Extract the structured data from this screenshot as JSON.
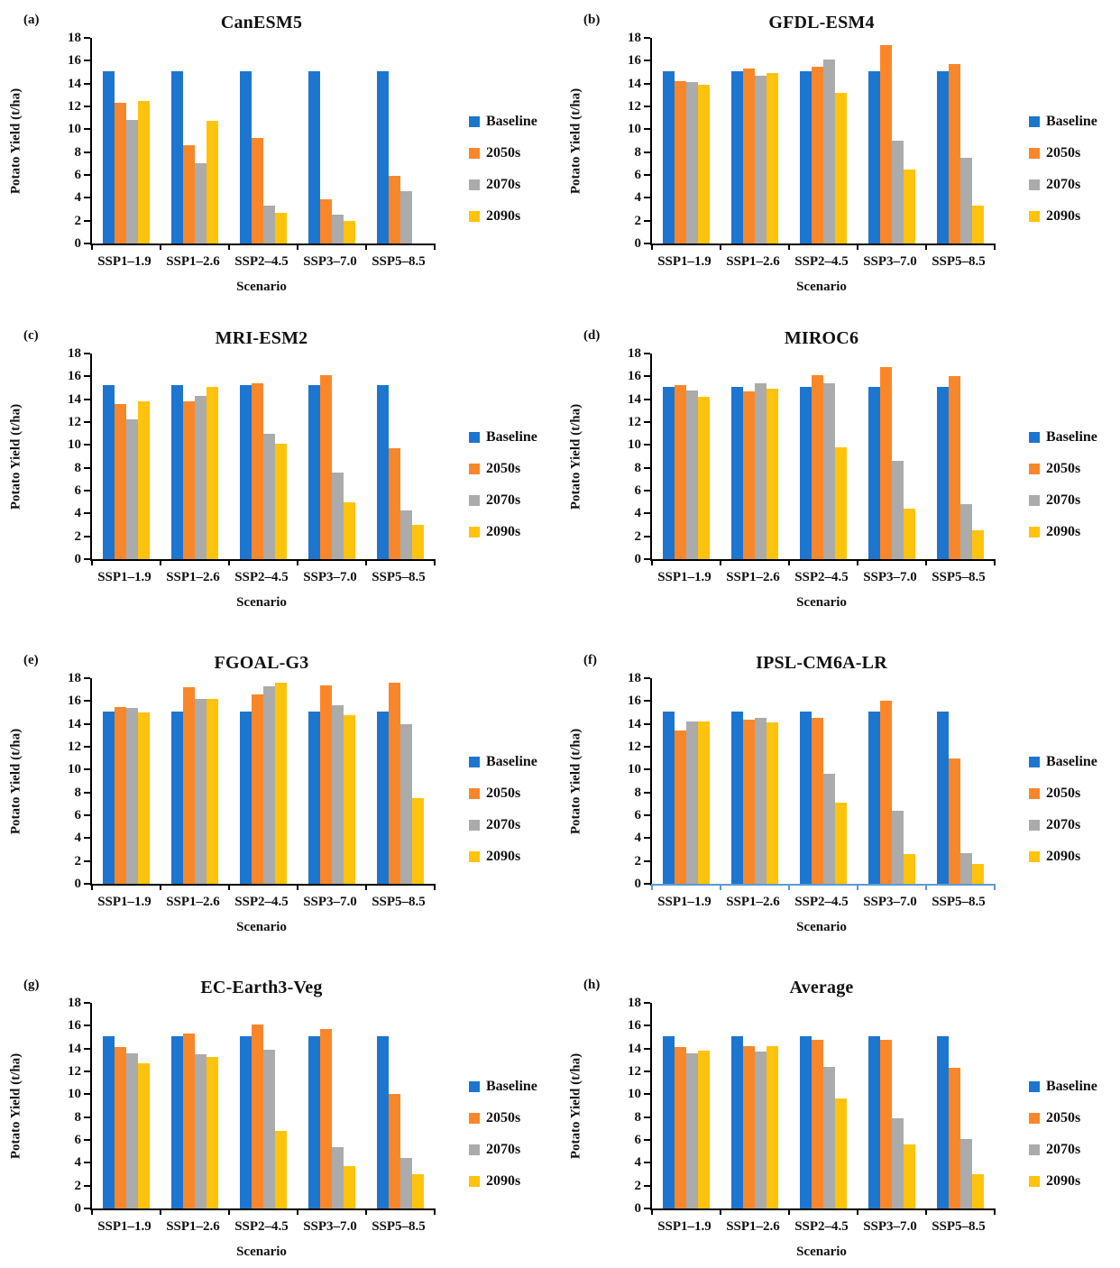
{
  "figure": {
    "xlabel": "Scenario",
    "ylabel": "Potato Yield (t/ha)",
    "legend": [
      "Baseline",
      "2050s",
      "2070s",
      "2090s"
    ],
    "series_colors": [
      "#1C76D0",
      "#F9872A",
      "#ABABAB",
      "#FFC30B"
    ],
    "axis_color_default": "#000000",
    "axis_color_panel_f": "#5B9BD5",
    "y_ticks": [
      0,
      2,
      4,
      6,
      8,
      10,
      12,
      14,
      16,
      18
    ]
  },
  "chart_data": [
    {
      "panel": "(a)",
      "title": "CanESM5",
      "type": "bar",
      "xlabel": "Scenario",
      "ylabel": "Potato Yield (t/ha)",
      "ylim": [
        0,
        18
      ],
      "categories": [
        "SSP1–1.9",
        "SSP1–2.6",
        "SSP2–4.5",
        "SSP3–7.0",
        "SSP5–8.5"
      ],
      "legend_position": "right",
      "series": [
        {
          "name": "Baseline",
          "values": [
            15.1,
            15.1,
            15.1,
            15.1,
            15.1
          ]
        },
        {
          "name": "2050s",
          "values": [
            12.3,
            8.6,
            9.2,
            3.9,
            5.9
          ]
        },
        {
          "name": "2070s",
          "values": [
            10.8,
            7.0,
            3.3,
            2.5,
            4.6
          ]
        },
        {
          "name": "2090s",
          "values": [
            12.5,
            10.7,
            2.7,
            2.0,
            0
          ]
        }
      ]
    },
    {
      "panel": "(b)",
      "title": "GFDL-ESM4",
      "type": "bar",
      "xlabel": "Scenario",
      "ylabel": "Potato Yield (t/ha)",
      "ylim": [
        0,
        18
      ],
      "categories": [
        "SSP1–1.9",
        "SSP1–2.6",
        "SSP2–4.5",
        "SSP3–7.0",
        "SSP5–8.5"
      ],
      "legend_position": "right",
      "series": [
        {
          "name": "Baseline",
          "values": [
            15.1,
            15.1,
            15.1,
            15.1,
            15.1
          ]
        },
        {
          "name": "2050s",
          "values": [
            14.2,
            15.3,
            15.5,
            17.4,
            15.7
          ]
        },
        {
          "name": "2070s",
          "values": [
            14.1,
            14.7,
            16.1,
            9.0,
            7.5
          ]
        },
        {
          "name": "2090s",
          "values": [
            13.9,
            14.9,
            13.2,
            6.5,
            3.3
          ]
        }
      ]
    },
    {
      "panel": "(c)",
      "title": "MRI-ESM2",
      "type": "bar",
      "xlabel": "Scenario",
      "ylabel": "Potato Yield (t/ha)",
      "ylim": [
        0,
        18
      ],
      "categories": [
        "SSP1–1.9",
        "SSP1–2.6",
        "SSP2–4.5",
        "SSP3–7.0",
        "SSP5–8.5"
      ],
      "legend_position": "right",
      "series": [
        {
          "name": "Baseline",
          "values": [
            15.2,
            15.2,
            15.2,
            15.2,
            15.2
          ]
        },
        {
          "name": "2050s",
          "values": [
            13.6,
            13.8,
            15.4,
            16.1,
            9.7
          ]
        },
        {
          "name": "2070s",
          "values": [
            12.2,
            14.3,
            11.0,
            7.6,
            4.3
          ]
        },
        {
          "name": "2090s",
          "values": [
            13.8,
            15.1,
            10.1,
            5.0,
            3.0
          ]
        }
      ]
    },
    {
      "panel": "(d)",
      "title": "MIROC6",
      "type": "bar",
      "xlabel": "Scenario",
      "ylabel": "Potato Yield (t/ha)",
      "ylim": [
        0,
        18
      ],
      "categories": [
        "SSP1–1.9",
        "SSP1–2.6",
        "SSP2–4.5",
        "SSP3–7.0",
        "SSP5–8.5"
      ],
      "legend_position": "right",
      "series": [
        {
          "name": "Baseline",
          "values": [
            15.1,
            15.1,
            15.1,
            15.1,
            15.1
          ]
        },
        {
          "name": "2050s",
          "values": [
            15.2,
            14.7,
            16.1,
            16.8,
            16.0
          ]
        },
        {
          "name": "2070s",
          "values": [
            14.8,
            15.4,
            15.4,
            8.6,
            4.8
          ]
        },
        {
          "name": "2090s",
          "values": [
            14.2,
            14.9,
            9.8,
            4.4,
            2.5
          ]
        }
      ]
    },
    {
      "panel": "(e)",
      "title": "FGOAL-G3",
      "type": "bar",
      "xlabel": "Scenario",
      "ylabel": "Potato Yield (t/ha)",
      "ylim": [
        0,
        18
      ],
      "categories": [
        "SSP1–1.9",
        "SSP1–2.6",
        "SSP2–4.5",
        "SSP3–7.0",
        "SSP5–8.5"
      ],
      "legend_position": "right",
      "series": [
        {
          "name": "Baseline",
          "values": [
            15.1,
            15.1,
            15.1,
            15.1,
            15.1
          ]
        },
        {
          "name": "2050s",
          "values": [
            15.5,
            17.2,
            16.6,
            17.4,
            17.6
          ]
        },
        {
          "name": "2070s",
          "values": [
            15.4,
            16.2,
            17.3,
            15.6,
            14.0
          ]
        },
        {
          "name": "2090s",
          "values": [
            15.0,
            16.2,
            17.6,
            14.8,
            7.5
          ]
        }
      ]
    },
    {
      "panel": "(f)",
      "title": "IPSL-CM6A-LR",
      "type": "bar",
      "xlabel": "Scenario",
      "ylabel": "Potato Yield (t/ha)",
      "ylim": [
        0,
        18
      ],
      "categories": [
        "SSP1–1.9",
        "SSP1–2.6",
        "SSP2–4.5",
        "SSP3–7.0",
        "SSP5–8.5"
      ],
      "legend_position": "right",
      "x_axis_blue": true,
      "series": [
        {
          "name": "Baseline",
          "values": [
            15.1,
            15.1,
            15.1,
            15.1,
            15.1
          ]
        },
        {
          "name": "2050s",
          "values": [
            13.4,
            14.4,
            14.5,
            16.0,
            11.0
          ]
        },
        {
          "name": "2070s",
          "values": [
            14.2,
            14.5,
            9.6,
            6.4,
            2.7
          ]
        },
        {
          "name": "2090s",
          "values": [
            14.2,
            14.1,
            7.1,
            2.6,
            1.7
          ]
        }
      ]
    },
    {
      "panel": "(g)",
      "title": "EC-Earth3-Veg",
      "type": "bar",
      "xlabel": "Scenario",
      "ylabel": "Potato Yield (t/ha)",
      "ylim": [
        0,
        18
      ],
      "categories": [
        "SSP1–1.9",
        "SSP1–2.6",
        "SSP2–4.5",
        "SSP3–7.0",
        "SSP5–8.5"
      ],
      "legend_position": "right",
      "series": [
        {
          "name": "Baseline",
          "values": [
            15.1,
            15.1,
            15.1,
            15.1,
            15.1
          ]
        },
        {
          "name": "2050s",
          "values": [
            14.1,
            15.3,
            16.1,
            15.7,
            10.0
          ]
        },
        {
          "name": "2070s",
          "values": [
            13.6,
            13.5,
            13.9,
            5.4,
            4.4
          ]
        },
        {
          "name": "2090s",
          "values": [
            12.7,
            13.3,
            6.8,
            3.7,
            3.0
          ]
        }
      ]
    },
    {
      "panel": "(h)",
      "title": "Average",
      "type": "bar",
      "xlabel": "Scenario",
      "ylabel": "Potato Yield (t/ha)",
      "ylim": [
        0,
        18
      ],
      "categories": [
        "SSP1–1.9",
        "SSP1–2.6",
        "SSP2–4.5",
        "SSP3–7.0",
        "SSP5–8.5"
      ],
      "legend_position": "right",
      "series": [
        {
          "name": "Baseline",
          "values": [
            15.1,
            15.1,
            15.1,
            15.1,
            15.1
          ]
        },
        {
          "name": "2050s",
          "values": [
            14.1,
            14.2,
            14.8,
            14.8,
            12.3
          ]
        },
        {
          "name": "2070s",
          "values": [
            13.6,
            13.7,
            12.4,
            7.9,
            6.1
          ]
        },
        {
          "name": "2090s",
          "values": [
            13.8,
            14.2,
            9.6,
            5.6,
            3.0
          ]
        }
      ]
    }
  ]
}
